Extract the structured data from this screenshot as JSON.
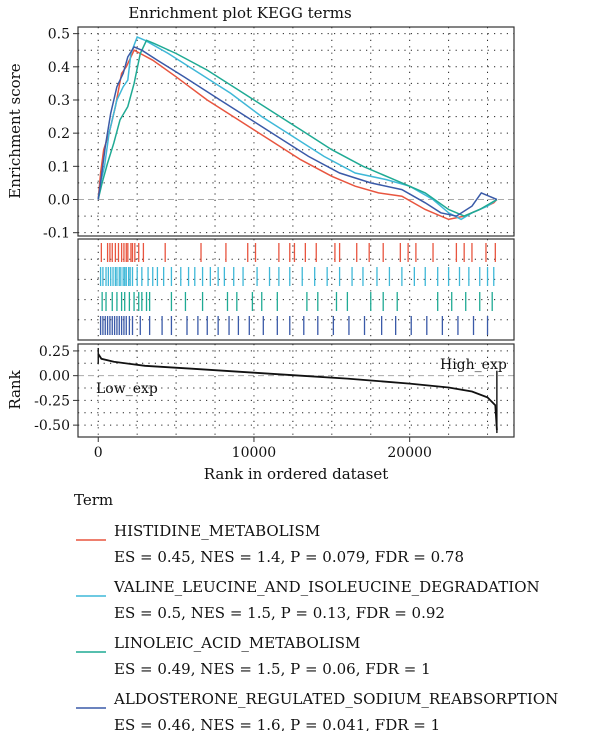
{
  "chart_data": {
    "type": "line",
    "title": "Enrichment plot KEGG terms",
    "xlabel": "Rank in ordered dataset",
    "x_ticks": [
      0,
      10000,
      20000
    ],
    "xlim": [
      -1300,
      26700
    ],
    "top_panel": {
      "ylabel": "Enrichment score",
      "ylim": [
        -0.11,
        0.52
      ],
      "y_ticks": [
        "0.5",
        "0.4",
        "0.3",
        "0.2",
        "0.1",
        "0.0",
        "-0.1"
      ],
      "y_tick_values": [
        0.5,
        0.4,
        0.3,
        0.2,
        0.1,
        0.0,
        -0.1
      ]
    },
    "rank_panel": {
      "ylabel": "Rank",
      "ylim": [
        -0.62,
        0.32
      ],
      "y_ticks": [
        "0.25",
        "0.00",
        "-0.25",
        "-0.50"
      ],
      "y_tick_values": [
        0.25,
        0.0,
        -0.25,
        -0.5
      ],
      "label_low": "Low_exp",
      "label_high": "High_exp",
      "curve": [
        [
          0,
          0.22
        ],
        [
          200,
          0.17
        ],
        [
          1000,
          0.14
        ],
        [
          3000,
          0.1
        ],
        [
          6000,
          0.07
        ],
        [
          10000,
          0.03
        ],
        [
          13000,
          0.0
        ],
        [
          16000,
          -0.03
        ],
        [
          20000,
          -0.08
        ],
        [
          22500,
          -0.12
        ],
        [
          24000,
          -0.16
        ],
        [
          25000,
          -0.22
        ],
        [
          25500,
          -0.3
        ],
        [
          25600,
          -0.55
        ]
      ]
    },
    "legend": {
      "title": "Term",
      "placement": "bottom"
    },
    "series": [
      {
        "name": "HISTIDINE_METABOLISM",
        "stats": "ES = 0.45, NES = 1.4, P = 0.079, FDR = 0.78",
        "color": "#e8553f",
        "points": [
          [
            0,
            0.0
          ],
          [
            150,
            0.08
          ],
          [
            350,
            0.15
          ],
          [
            700,
            0.2
          ],
          [
            1100,
            0.28
          ],
          [
            1500,
            0.38
          ],
          [
            1800,
            0.4
          ],
          [
            2000,
            0.42
          ],
          [
            2300,
            0.45
          ],
          [
            2700,
            0.44
          ],
          [
            3500,
            0.42
          ],
          [
            5000,
            0.37
          ],
          [
            7000,
            0.3
          ],
          [
            9000,
            0.24
          ],
          [
            11000,
            0.18
          ],
          [
            13000,
            0.12
          ],
          [
            15000,
            0.07
          ],
          [
            16500,
            0.04
          ],
          [
            18000,
            0.02
          ],
          [
            19500,
            0.01
          ],
          [
            21000,
            -0.03
          ],
          [
            22500,
            -0.06
          ],
          [
            23500,
            -0.05
          ],
          [
            24500,
            -0.03
          ],
          [
            25400,
            -0.01
          ],
          [
            25600,
            0.0
          ]
        ],
        "hits": [
          200,
          600,
          750,
          900,
          1100,
          1300,
          1500,
          1650,
          1800,
          1900,
          2100,
          2200,
          2350,
          2600,
          2900,
          4300,
          6600,
          8200,
          9600,
          10100,
          11600,
          12300,
          12600,
          13300,
          14000,
          15200,
          15500,
          16600,
          17400,
          18300,
          19400,
          19900,
          20400,
          21500,
          23000,
          23500,
          24000,
          24900,
          25500
        ]
      },
      {
        "name": "VALINE_LEUCINE_AND_ISOLEUCINE_DEGRADATION",
        "stats": "ES = 0.5, NES = 1.5, P = 0.13, FDR = 0.92",
        "color": "#3fb8d8",
        "points": [
          [
            0,
            0.0
          ],
          [
            200,
            0.06
          ],
          [
            400,
            0.1
          ],
          [
            700,
            0.2
          ],
          [
            1200,
            0.3
          ],
          [
            1600,
            0.34
          ],
          [
            1900,
            0.36
          ],
          [
            2100,
            0.44
          ],
          [
            2500,
            0.49
          ],
          [
            3000,
            0.48
          ],
          [
            4500,
            0.44
          ],
          [
            6500,
            0.38
          ],
          [
            8500,
            0.32
          ],
          [
            10500,
            0.25
          ],
          [
            12500,
            0.19
          ],
          [
            14500,
            0.13
          ],
          [
            16500,
            0.08
          ],
          [
            18500,
            0.06
          ],
          [
            20000,
            0.04
          ],
          [
            21500,
            0.0
          ],
          [
            22500,
            -0.04
          ],
          [
            23300,
            -0.06
          ],
          [
            24000,
            -0.04
          ],
          [
            25000,
            -0.02
          ],
          [
            25600,
            0.0
          ]
        ],
        "hits": [
          150,
          300,
          500,
          650,
          800,
          950,
          1100,
          1200,
          1350,
          1450,
          1600,
          1700,
          1800,
          1950,
          2050,
          2200,
          2500,
          2800,
          3200,
          3500,
          3800,
          4200,
          4700,
          5300,
          5800,
          6200,
          6700,
          7200,
          7700,
          8100,
          8700,
          9300,
          10200,
          11000,
          11600,
          12300,
          13100,
          13900,
          14700,
          15500,
          16300,
          17000,
          17900,
          18700,
          19500,
          20300,
          21000,
          21800,
          22500,
          23200,
          23800,
          24500,
          25000,
          25400
        ]
      },
      {
        "name": "LINOLEIC_ACID_METABOLISM",
        "stats": "ES = 0.49, NES = 1.5, P = 0.06, FDR = 1",
        "color": "#1faa94",
        "points": [
          [
            0,
            0.0
          ],
          [
            250,
            0.05
          ],
          [
            600,
            0.11
          ],
          [
            1000,
            0.17
          ],
          [
            1400,
            0.24
          ],
          [
            1900,
            0.28
          ],
          [
            2300,
            0.35
          ],
          [
            2700,
            0.44
          ],
          [
            3100,
            0.48
          ],
          [
            3600,
            0.47
          ],
          [
            5000,
            0.44
          ],
          [
            7000,
            0.39
          ],
          [
            9000,
            0.33
          ],
          [
            11000,
            0.27
          ],
          [
            13000,
            0.21
          ],
          [
            15000,
            0.15
          ],
          [
            17000,
            0.1
          ],
          [
            19000,
            0.06
          ],
          [
            21000,
            0.02
          ],
          [
            22500,
            -0.03
          ],
          [
            23500,
            -0.05
          ],
          [
            24500,
            -0.03
          ],
          [
            25600,
            0.0
          ]
        ],
        "hits": [
          250,
          500,
          900,
          1200,
          1500,
          1700,
          2000,
          2300,
          2600,
          2800,
          3100,
          3300,
          4700,
          5600,
          6700,
          8300,
          8900,
          9900,
          10500,
          11500,
          13400,
          14100,
          15300,
          16000,
          17500,
          18300,
          19200,
          21800,
          22700,
          23600,
          24500,
          25300
        ]
      },
      {
        "name": "ALDOSTERONE_REGULATED_SODIUM_REABSORPTION",
        "stats": "ES = 0.46, NES = 1.6, P = 0.041, FDR = 1",
        "color": "#3a5aa8",
        "points": [
          [
            0,
            0.0
          ],
          [
            200,
            0.07
          ],
          [
            450,
            0.16
          ],
          [
            800,
            0.26
          ],
          [
            1200,
            0.34
          ],
          [
            1600,
            0.38
          ],
          [
            1900,
            0.43
          ],
          [
            2300,
            0.46
          ],
          [
            2800,
            0.45
          ],
          [
            3800,
            0.42
          ],
          [
            5500,
            0.37
          ],
          [
            7500,
            0.31
          ],
          [
            9500,
            0.25
          ],
          [
            11500,
            0.19
          ],
          [
            13500,
            0.13
          ],
          [
            15500,
            0.08
          ],
          [
            17500,
            0.05
          ],
          [
            19500,
            0.03
          ],
          [
            21000,
            -0.01
          ],
          [
            22000,
            -0.04
          ],
          [
            23000,
            -0.05
          ],
          [
            24000,
            -0.02
          ],
          [
            24600,
            0.02
          ],
          [
            25100,
            0.01
          ],
          [
            25600,
            0.0
          ]
        ],
        "hits": [
          150,
          300,
          450,
          600,
          750,
          900,
          1050,
          1200,
          1350,
          1500,
          1650,
          1800,
          2000,
          2200,
          2700,
          3300,
          4100,
          4700,
          5700,
          6400,
          7000,
          7700,
          8400,
          9000,
          9700,
          10600,
          11500,
          12300,
          13200,
          14100,
          15100,
          16100,
          17100,
          18200,
          19100,
          20100,
          21100,
          22100,
          23100,
          24100,
          25000
        ]
      }
    ]
  }
}
